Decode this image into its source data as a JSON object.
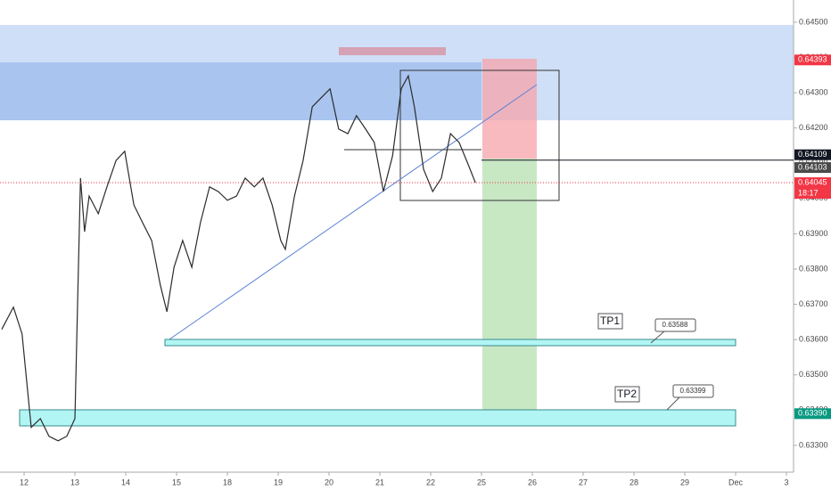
{
  "chart_data": {
    "type": "line",
    "x": [
      -0.44,
      -0.21,
      -0.04,
      0.14,
      0.32,
      0.49,
      0.67,
      0.84,
      1.0,
      1.11,
      1.19,
      1.28,
      1.46,
      1.63,
      1.81,
      1.98,
      2.16,
      2.33,
      2.51,
      2.68,
      2.81,
      2.95,
      3.12,
      3.3,
      3.47,
      3.65,
      3.82,
      4.0,
      4.18,
      4.35,
      4.53,
      4.7,
      4.88,
      5.05,
      5.14,
      5.32,
      5.49,
      5.67,
      5.84,
      6.02,
      6.19,
      6.37,
      6.54,
      6.72,
      6.89,
      7.07,
      7.25,
      7.42,
      7.56,
      7.68,
      7.86,
      8.04,
      8.21,
      8.39,
      8.56,
      8.74,
      8.88
    ],
    "series": [
      {
        "color": "#2b2b2b",
        "values": [
          0.63629,
          0.63692,
          0.63616,
          0.63351,
          0.63376,
          0.63326,
          0.63313,
          0.63326,
          0.63376,
          0.64058,
          0.63906,
          0.64007,
          0.63957,
          0.64033,
          0.64108,
          0.64134,
          0.63982,
          0.63932,
          0.63881,
          0.63755,
          0.63679,
          0.63805,
          0.63881,
          0.63805,
          0.63932,
          0.64033,
          0.6402,
          0.63995,
          0.64007,
          0.64058,
          0.64033,
          0.64058,
          0.63982,
          0.63881,
          0.63856,
          0.64007,
          0.64108,
          0.6426,
          0.64285,
          0.64311,
          0.64197,
          0.64184,
          0.64235,
          0.64197,
          0.64159,
          0.6402,
          0.64121,
          0.64311,
          0.64348,
          0.6426,
          0.64083,
          0.6402,
          0.64058,
          0.64184,
          0.64159,
          0.64096,
          0.64045
        ]
      }
    ],
    "xlim": [
      -0.474,
      15.14
    ],
    "xticks": [
      {
        "value": 0,
        "label": "12"
      },
      {
        "value": 1,
        "label": "13"
      },
      {
        "value": 2,
        "label": "14"
      },
      {
        "value": 3,
        "label": "15"
      },
      {
        "value": 4,
        "label": "18"
      },
      {
        "value": 5,
        "label": "19"
      },
      {
        "value": 6,
        "label": "20"
      },
      {
        "value": 7,
        "label": "21"
      },
      {
        "value": 8,
        "label": "22"
      },
      {
        "value": 9,
        "label": "25"
      },
      {
        "value": 10,
        "label": "26"
      },
      {
        "value": 11,
        "label": "27"
      },
      {
        "value": 12,
        "label": "28"
      },
      {
        "value": 13,
        "label": "29"
      },
      {
        "value": 14,
        "label": "Dec"
      },
      {
        "value": 15,
        "label": "3"
      }
    ],
    "ylim": [
      0.63224,
      0.64563
    ],
    "yticks": [
      {
        "value": 0.633,
        "label": "0.63300"
      },
      {
        "value": 0.634,
        "label": "0.63400"
      },
      {
        "value": 0.635,
        "label": "0.63500"
      },
      {
        "value": 0.636,
        "label": "0.63600"
      },
      {
        "value": 0.637,
        "label": "0.63700"
      },
      {
        "value": 0.638,
        "label": "0.63800"
      },
      {
        "value": 0.639,
        "label": "0.63900"
      },
      {
        "value": 0.64,
        "label": "0.64000"
      },
      {
        "value": 0.641,
        "label": "0.64100"
      },
      {
        "value": 0.642,
        "label": "0.64200"
      },
      {
        "value": 0.643,
        "label": "0.64300"
      },
      {
        "value": 0.644,
        "label": "0.64400"
      },
      {
        "value": 0.645,
        "label": "0.64500"
      }
    ],
    "grid": false,
    "price_labels": [
      {
        "value": 0.64393,
        "label": "0.64393",
        "color": "#f23645"
      },
      {
        "value": 0.64109,
        "label": "0.64109",
        "color": "#131722"
      },
      {
        "value": 0.64103,
        "label": "0.64103",
        "color": "#4a4a4a"
      },
      {
        "value": 0.64045,
        "label": "0.64045",
        "color": "#f23645"
      },
      {
        "value": 0.6339,
        "label": "0.63390",
        "color": "#089981"
      }
    ],
    "countdown": "18:17",
    "callouts": [
      "TP1",
      "0.63588",
      "TP2",
      "0.63399"
    ]
  }
}
